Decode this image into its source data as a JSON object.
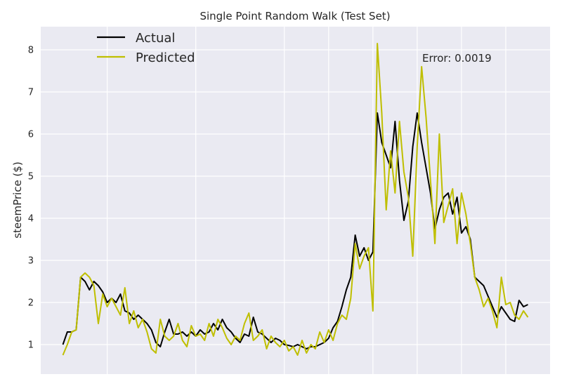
{
  "chart_data": {
    "type": "line",
    "title": "Single Point Random Walk (Test Set)",
    "xlabel": "",
    "ylabel": "steemPrice ($)",
    "ylim": [
      0.3,
      8.55
    ],
    "xlim": [
      -5,
      110
    ],
    "yticks": [
      1,
      2,
      3,
      4,
      5,
      6,
      7,
      8
    ],
    "ytick_labels": [
      "1",
      "2",
      "3",
      "4",
      "5",
      "6",
      "7",
      "8"
    ],
    "xgrid": [
      10,
      30,
      50,
      60,
      70,
      80,
      90,
      100
    ],
    "grid": true,
    "legend_position": "top-left",
    "annotation": "Error: 0.0019",
    "colors": {
      "background": "#eaeaf2",
      "grid": "#ffffff",
      "Actual": "#000000",
      "Predicted": "#bfbf00"
    },
    "series": [
      {
        "name": "Actual",
        "values": [
          1.0,
          1.3,
          1.3,
          1.35,
          2.6,
          2.5,
          2.3,
          2.5,
          2.4,
          2.25,
          2.0,
          2.1,
          2.0,
          2.2,
          1.8,
          1.75,
          1.6,
          1.7,
          1.6,
          1.5,
          1.35,
          1.05,
          0.95,
          1.3,
          1.6,
          1.25,
          1.25,
          1.3,
          1.2,
          1.3,
          1.2,
          1.35,
          1.25,
          1.3,
          1.5,
          1.35,
          1.6,
          1.4,
          1.3,
          1.15,
          1.05,
          1.25,
          1.2,
          1.65,
          1.3,
          1.25,
          1.15,
          1.05,
          1.15,
          1.1,
          1.0,
          0.98,
          0.95,
          1.0,
          0.95,
          0.9,
          0.95,
          0.95,
          1.0,
          1.05,
          1.15,
          1.4,
          1.55,
          1.9,
          2.3,
          2.6,
          3.6,
          3.1,
          3.3,
          3.0,
          3.2,
          6.5,
          5.8,
          5.5,
          5.2,
          6.3,
          4.9,
          3.95,
          4.4,
          5.7,
          6.5,
          5.8,
          5.2,
          4.6,
          3.75,
          4.2,
          4.5,
          4.6,
          4.1,
          4.5,
          3.65,
          3.8,
          3.5,
          2.6,
          2.5,
          2.4,
          2.15,
          1.9,
          1.65,
          1.9,
          1.75,
          1.6,
          1.55,
          2.05,
          1.9,
          1.95
        ]
      },
      {
        "name": "Predicted",
        "values": [
          0.75,
          1.0,
          1.3,
          1.35,
          2.6,
          2.7,
          2.6,
          2.4,
          1.5,
          2.2,
          1.9,
          2.1,
          1.9,
          1.7,
          2.35,
          1.5,
          1.8,
          1.4,
          1.6,
          1.3,
          0.9,
          0.8,
          1.6,
          1.2,
          1.1,
          1.2,
          1.5,
          1.1,
          0.95,
          1.45,
          1.2,
          1.25,
          1.1,
          1.5,
          1.2,
          1.6,
          1.4,
          1.15,
          1.0,
          1.2,
          1.1,
          1.5,
          1.75,
          1.1,
          1.2,
          1.35,
          0.9,
          1.2,
          1.05,
          0.95,
          1.1,
          0.85,
          0.95,
          0.75,
          1.1,
          0.8,
          1.0,
          0.9,
          1.3,
          1.05,
          1.35,
          1.1,
          1.5,
          1.7,
          1.6,
          2.1,
          3.4,
          2.8,
          3.1,
          3.3,
          1.8,
          8.15,
          6.5,
          4.2,
          5.6,
          4.6,
          6.3,
          5.1,
          4.5,
          3.1,
          5.7,
          7.6,
          6.4,
          4.9,
          3.4,
          6.0,
          3.9,
          4.3,
          4.7,
          3.4,
          4.6,
          4.1,
          3.4,
          2.6,
          2.3,
          1.9,
          2.1,
          1.8,
          1.4,
          2.6,
          1.95,
          2.0,
          1.7,
          1.6,
          1.8,
          1.65
        ]
      }
    ]
  }
}
